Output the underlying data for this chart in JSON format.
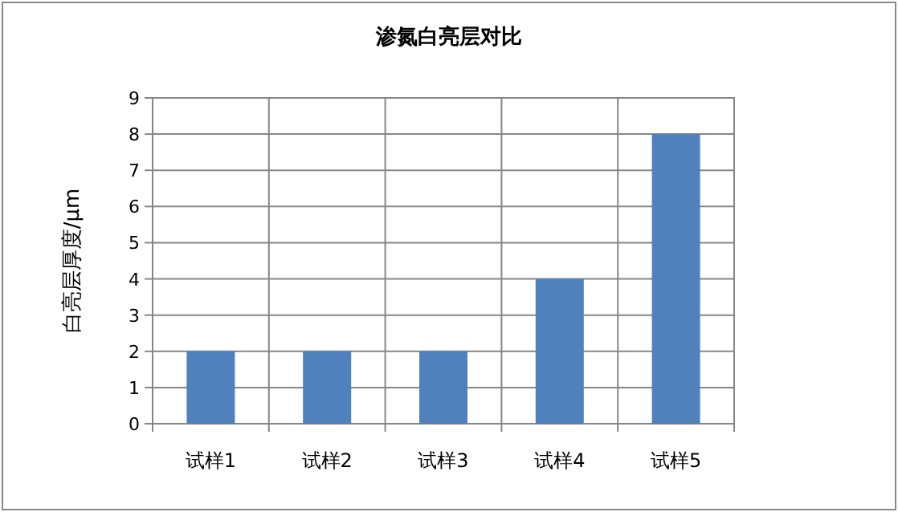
{
  "chart_data": {
    "type": "bar",
    "title": "渗氮白亮层对比",
    "ylabel": "白亮层厚度/μm",
    "categories": [
      "试样1",
      "试样2",
      "试样3",
      "试样4",
      "试样5"
    ],
    "values": [
      2,
      2,
      2,
      4,
      8
    ],
    "color": "#4f81bd",
    "ylim": [
      0,
      9
    ],
    "yticks": [
      0,
      1,
      2,
      3,
      4,
      5,
      6,
      7,
      8,
      9
    ],
    "grid": true
  }
}
